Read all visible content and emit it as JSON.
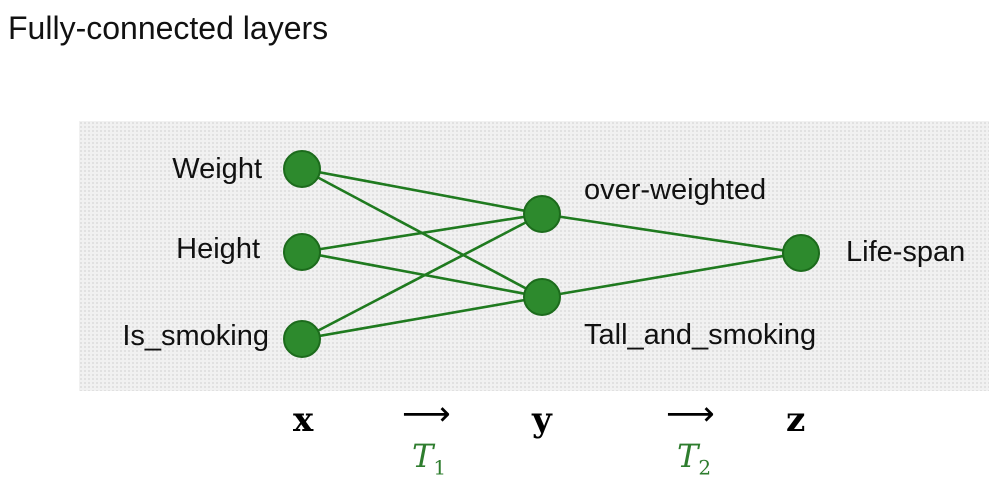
{
  "title": "Fully-connected layers",
  "colors": {
    "node_fill": "#2d8a2d",
    "node_stroke": "#1c6b1c",
    "edge": "#1f7a1f",
    "transform_label": "#2e7d2e"
  },
  "layers": {
    "input": [
      "Weight",
      "Height",
      "Is_smoking"
    ],
    "hidden": [
      "over-weighted",
      "Tall_and_smoking"
    ],
    "output": [
      "Life-span"
    ]
  },
  "vectors": {
    "x": "x",
    "y": "y",
    "z": "z",
    "arrow": "⟶"
  },
  "transforms": {
    "t1": {
      "symbol": "T",
      "subscript": "1"
    },
    "t2": {
      "symbol": "T",
      "subscript": "2"
    }
  }
}
